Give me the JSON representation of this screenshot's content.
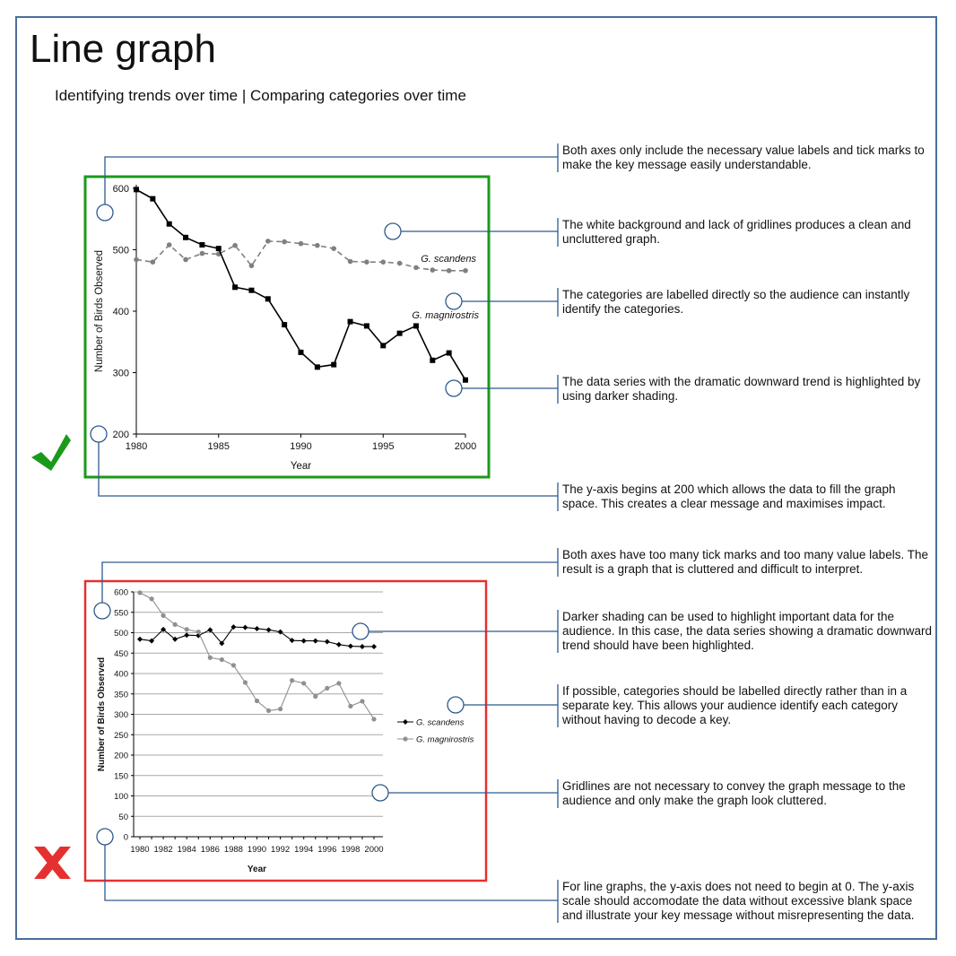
{
  "title": "Line graph",
  "subtitle": "Identifying trends over time | Comparing categories over time",
  "colors": {
    "frame": "#4a6e9c",
    "good": "#1a9a1a",
    "bad": "#e53030",
    "callout": "#2f5a8c"
  },
  "icons": {
    "good": "check-icon",
    "bad": "cross-icon"
  },
  "notes_good": [
    "Both axes only include the necessary value labels and tick marks to make the key message easily understandable.",
    "The white background and lack of gridlines produces a clean and uncluttered graph.",
    "The categories are labelled directly so the audience can instantly identify the categories.",
    "The data series with the dramatic downward trend is highlighted by using darker shading.",
    "The y-axis begins at 200 which allows the data to fill the graph space. This creates a clear message and maximises impact."
  ],
  "notes_bad": [
    "Both axes have too many tick marks and too many value labels. The result is a graph that is cluttered and difficult to interpret.",
    "Darker shading can be used to highlight important data for the audience. In this case, the data series showing a dramatic downward trend should have been highlighted.",
    "If possible, categories should be labelled directly rather than in a separate key. This allows your audience identify each category without having to decode a key.",
    "Gridlines are not necessary to convey the graph message to the audience and only make the graph look cluttered.",
    "For line graphs, the y-axis does not need to begin at 0. The y-axis scale should accomodate the data without excessive blank space and illustrate your key message without misrepresenting the data."
  ],
  "chart_data": [
    {
      "type": "line",
      "xlabel": "Year",
      "ylabel": "Number of Birds Observed",
      "xlim": [
        1980,
        2000
      ],
      "ylim": [
        200,
        600
      ],
      "xticks": [
        "1980",
        "1985",
        "1990",
        "1995",
        "2000"
      ],
      "yticks": [
        "200",
        "300",
        "400",
        "500",
        "600"
      ],
      "grid": false,
      "legend": "direct labels",
      "x": [
        1980,
        1981,
        1982,
        1983,
        1984,
        1985,
        1986,
        1987,
        1988,
        1989,
        1990,
        1991,
        1992,
        1993,
        1994,
        1995,
        1996,
        1997,
        1998,
        1999,
        2000
      ],
      "series": [
        {
          "name": "G. scandens",
          "style": "dashed",
          "color": "#808080",
          "values": [
            484,
            480,
            508,
            484,
            494,
            493,
            507,
            474,
            514,
            513,
            510,
            507,
            502,
            481,
            480,
            480,
            478,
            471,
            467,
            466,
            466
          ]
        },
        {
          "name": "G. magnirostris",
          "style": "solid",
          "color": "#000000",
          "values": [
            598,
            583,
            542,
            520,
            508,
            502,
            439,
            434,
            420,
            378,
            333,
            309,
            313,
            383,
            376,
            344,
            364,
            376,
            320,
            332,
            288
          ]
        }
      ]
    },
    {
      "type": "line",
      "xlabel": "Year",
      "ylabel": "Number of Birds Observed",
      "xlim": [
        1980,
        2000
      ],
      "ylim": [
        0,
        600
      ],
      "xticks": [
        "1980",
        "1982",
        "1984",
        "1986",
        "1988",
        "1990",
        "1992",
        "1994",
        "1996",
        "1998",
        "2000"
      ],
      "yticks": [
        "0",
        "50",
        "100",
        "150",
        "200",
        "250",
        "300",
        "350",
        "400",
        "450",
        "500",
        "550",
        "600"
      ],
      "grid": true,
      "legend": "right",
      "x": [
        1980,
        1981,
        1982,
        1983,
        1984,
        1985,
        1986,
        1987,
        1988,
        1989,
        1990,
        1991,
        1992,
        1993,
        1994,
        1995,
        1996,
        1997,
        1998,
        1999,
        2000
      ],
      "series": [
        {
          "name": "G. scandens",
          "color": "#000000",
          "values": [
            484,
            480,
            508,
            484,
            494,
            493,
            507,
            474,
            514,
            513,
            510,
            507,
            502,
            481,
            480,
            480,
            478,
            471,
            467,
            466,
            466
          ]
        },
        {
          "name": "G. magnirostris",
          "color": "#909090",
          "values": [
            598,
            583,
            542,
            520,
            508,
            502,
            439,
            434,
            420,
            378,
            333,
            309,
            313,
            383,
            376,
            344,
            364,
            376,
            320,
            332,
            288
          ]
        }
      ]
    }
  ]
}
